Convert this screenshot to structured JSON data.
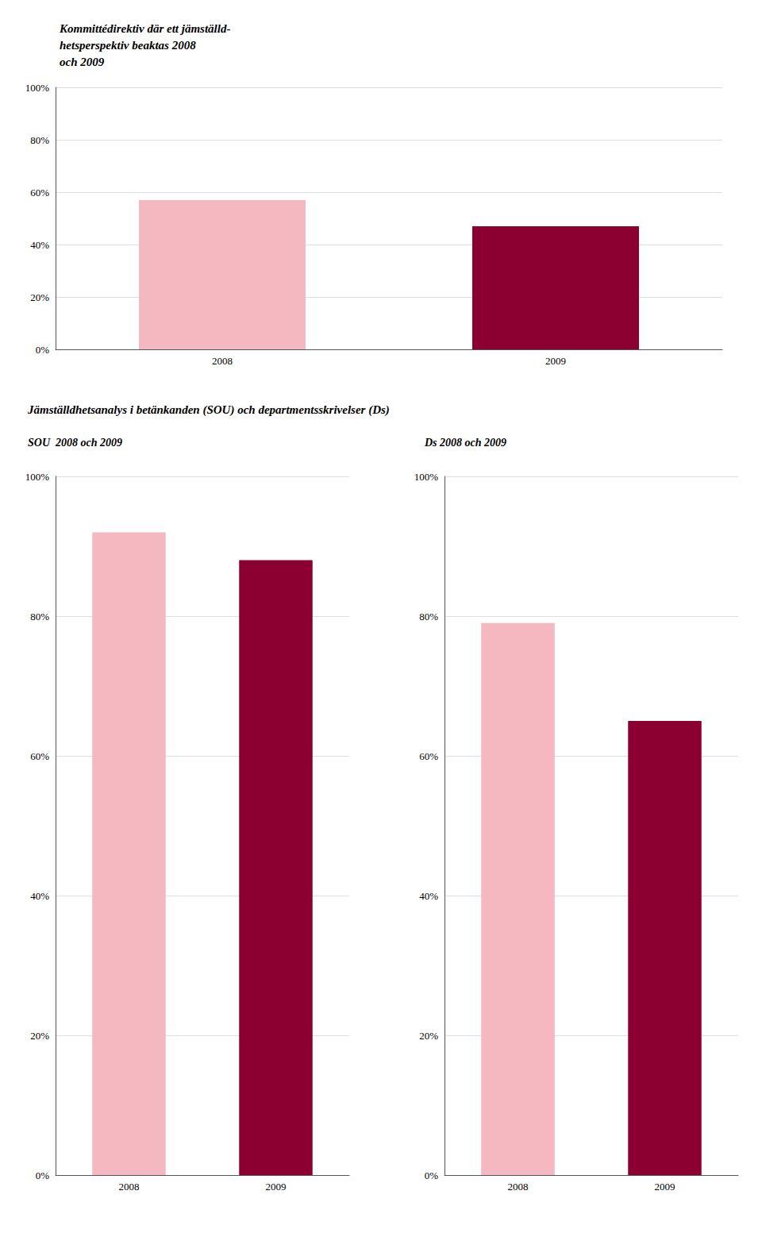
{
  "chart_data": [
    {
      "type": "bar",
      "title": "Kommittédirektiv där ett jämställd-\nhetsperspektiv beaktas 2008\noch 2009",
      "categories": [
        "2008",
        "2009"
      ],
      "values": [
        57,
        47
      ],
      "colors": [
        "#f5b8c0",
        "#8b0030"
      ],
      "ylim": [
        0,
        100
      ],
      "yticks": [
        {
          "value": 0,
          "label": "0%"
        },
        {
          "value": 20,
          "label": "20%"
        },
        {
          "value": 40,
          "label": "40%"
        },
        {
          "value": 60,
          "label": "60%"
        },
        {
          "value": 80,
          "label": "80%"
        },
        {
          "value": 100,
          "label": "100%"
        }
      ],
      "grid": true
    },
    {
      "type": "bar",
      "title": "Jämställdhetsanalys i betänkanden (SOU) och departmentsskrivelser (Ds)",
      "subtitle": "SOU  2008 och 2009",
      "categories": [
        "2008",
        "2009"
      ],
      "values": [
        92,
        88
      ],
      "colors": [
        "#f5b8c0",
        "#8b0030"
      ],
      "ylim": [
        0,
        100
      ],
      "yticks": [
        {
          "value": 0,
          "label": "0%"
        },
        {
          "value": 20,
          "label": "20%"
        },
        {
          "value": 40,
          "label": "40%"
        },
        {
          "value": 60,
          "label": "60%"
        },
        {
          "value": 80,
          "label": "80%"
        },
        {
          "value": 100,
          "label": "100%"
        }
      ],
      "grid": true
    },
    {
      "type": "bar",
      "subtitle": "Ds 2008 och 2009",
      "categories": [
        "2008",
        "2009"
      ],
      "values": [
        79,
        65
      ],
      "colors": [
        "#f5b8c0",
        "#8b0030"
      ],
      "ylim": [
        0,
        100
      ],
      "yticks": [
        {
          "value": 0,
          "label": "0%"
        },
        {
          "value": 20,
          "label": "20%"
        },
        {
          "value": 40,
          "label": "40%"
        },
        {
          "value": 60,
          "label": "60%"
        },
        {
          "value": 80,
          "label": "80%"
        },
        {
          "value": 100,
          "label": "100%"
        }
      ],
      "grid": true
    }
  ]
}
